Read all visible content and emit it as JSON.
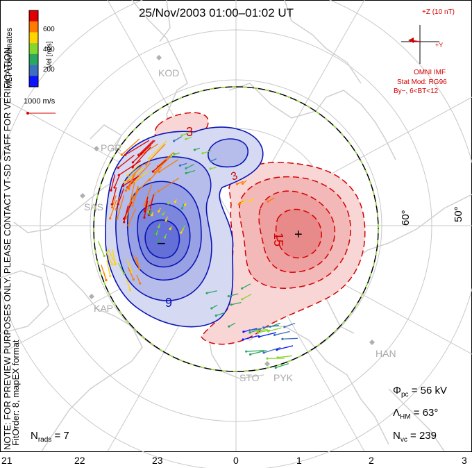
{
  "title": "25/Nov/2003 01:00–01:02 UT",
  "vertical_notes": {
    "mlt": "MLT coordinates",
    "preview": "NOTE: FOR PREVIEW PURPOSES ONLY. PLEASE CONTACT VT-SD STAFF FOR VERIFICATION.",
    "fit": "FitOrder: 8, mapEX format"
  },
  "colorbar": {
    "label": "Vel [m/s]",
    "ticks": [
      "600",
      "400",
      "200"
    ],
    "colors": [
      "#e00000",
      "#ff7a00",
      "#ffd400",
      "#86d630",
      "#2aa860",
      "#3d6fbd",
      "#0a14ff"
    ]
  },
  "vector_scale": "1000 m/s",
  "imf": {
    "z_label": "+Z (10 nT)",
    "y_label": "+Y",
    "source": "OMNI IMF",
    "model": "Stat Mod: RG96",
    "condition": "By−, 6<BT<12"
  },
  "contour_labels": [
    "3",
    "15",
    "9",
    "3"
  ],
  "markers": {
    "max": "+",
    "min": "−"
  },
  "latitudes": [
    "60°",
    "50°"
  ],
  "stations": [
    "KOD",
    "PGR",
    "SAS",
    "KAP",
    "HAN",
    "STO",
    "PYK"
  ],
  "stats": {
    "nrads_label": "N",
    "nrads_sub": "rads",
    "nrads_value": "= 7",
    "phi_label": "Φ",
    "phi_sub": "pc",
    "phi_value": "= 56 kV",
    "lambda_label": "Λ",
    "lambda_sub": "HM",
    "lambda_value": "= 63°",
    "nvc_label": "N",
    "nvc_sub": "vc",
    "nvc_value": "= 239"
  },
  "mlt_ticks": [
    "21",
    "22",
    "23",
    "0",
    "1",
    "2",
    "3"
  ],
  "colors": {
    "positive": "#d40000",
    "negative": "#0a14b4",
    "pos_fill": "#f6c9c9",
    "neg_fill": "#9fa8e8",
    "grid": "#c8c8c8",
    "coast": "#cfcfcf",
    "boundary": "#000000",
    "boundary_dash": "#9be23a"
  }
}
